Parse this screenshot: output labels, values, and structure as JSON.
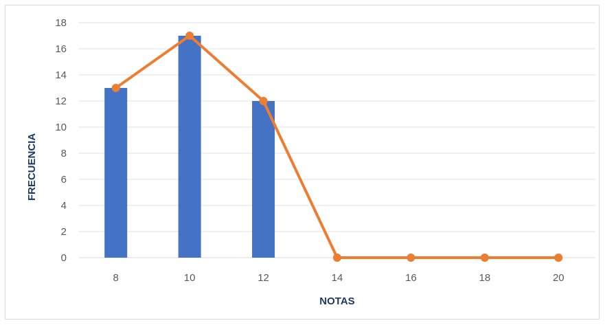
{
  "chart_data": {
    "type": "bar",
    "x": [
      8,
      10,
      12,
      14,
      16,
      18,
      20
    ],
    "categories": [
      "8",
      "10",
      "12",
      "14",
      "16",
      "18",
      "20"
    ],
    "series": [
      {
        "kind": "bar",
        "values": [
          13,
          17,
          12,
          0,
          0,
          0,
          0
        ],
        "color": "#4472c4"
      },
      {
        "kind": "line",
        "values": [
          13,
          17,
          12,
          0,
          0,
          0,
          0
        ],
        "color": "#ed7d31"
      }
    ],
    "title": "",
    "xlabel": "NOTAS",
    "ylabel": "FRECUENCIA",
    "ylim": [
      0,
      18
    ],
    "yticks": [
      "0",
      "2",
      "4",
      "6",
      "8",
      "10",
      "12",
      "14",
      "16",
      "18"
    ],
    "grid": true,
    "legend": "none"
  }
}
